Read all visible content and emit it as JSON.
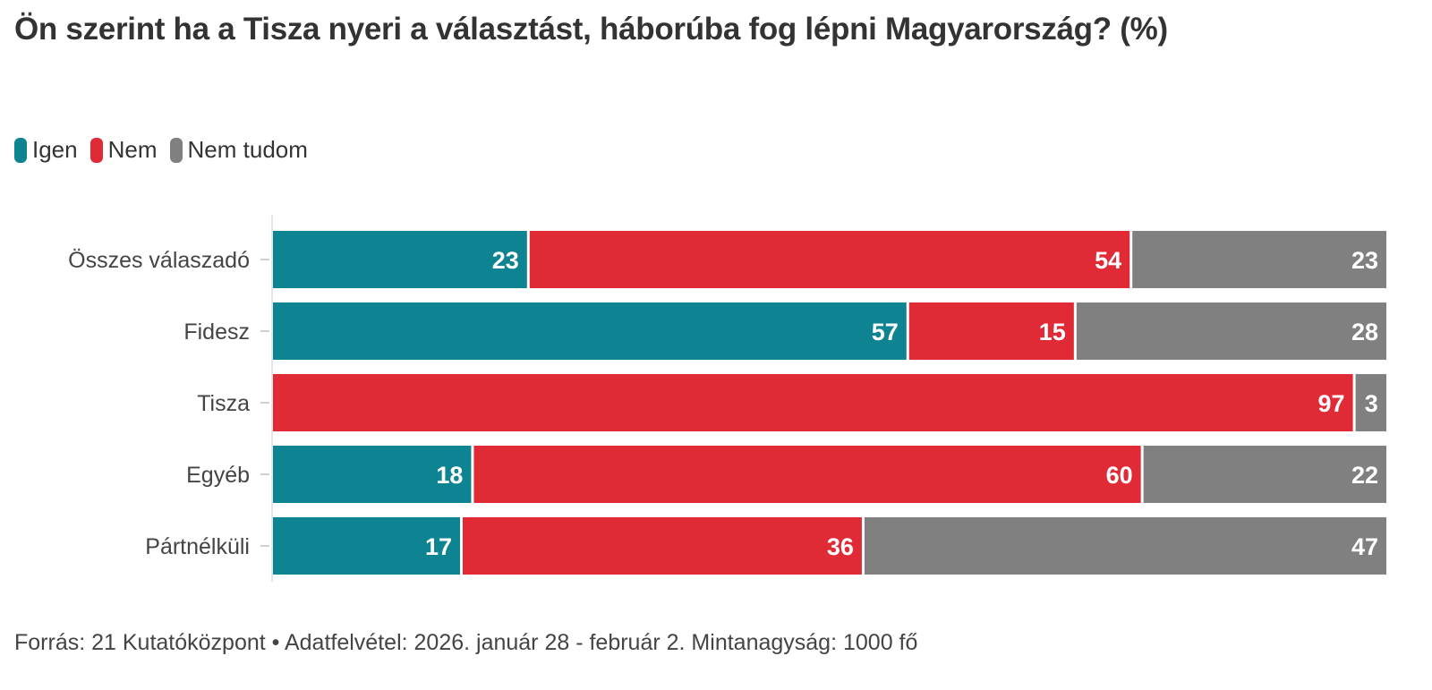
{
  "title": "Ön szerint ha a Tisza nyeri a választást, háborúba fog lépni Magyarország? (%)",
  "source": "Forrás: 21 Kutatóközpont • Adatfelvétel: 2026. január 28 - február 2. Mintanagyság: 1000 fő",
  "colors": {
    "Igen": "#0e8391",
    "Nem": "#e02a35",
    "Nem tudom": "#808080"
  },
  "chart_data": {
    "type": "bar",
    "orientation": "horizontal",
    "stacked": true,
    "title": "Ön szerint ha a Tisza nyeri a választást, háborúba fog lépni Magyarország? (%)",
    "xlabel": "",
    "ylabel": "",
    "xlim": [
      0,
      100
    ],
    "grid": false,
    "legend_position": "top-left",
    "categories": [
      "Összes válaszadó",
      "Fidesz",
      "Tisza",
      "Egyéb",
      "Pártnélküli"
    ],
    "series": [
      {
        "name": "Igen",
        "color": "#0e8391",
        "values": [
          23,
          57,
          0,
          18,
          17
        ]
      },
      {
        "name": "Nem",
        "color": "#e02a35",
        "values": [
          54,
          15,
          97,
          60,
          36
        ]
      },
      {
        "name": "Nem tudom",
        "color": "#808080",
        "values": [
          23,
          28,
          3,
          22,
          47
        ]
      }
    ]
  }
}
